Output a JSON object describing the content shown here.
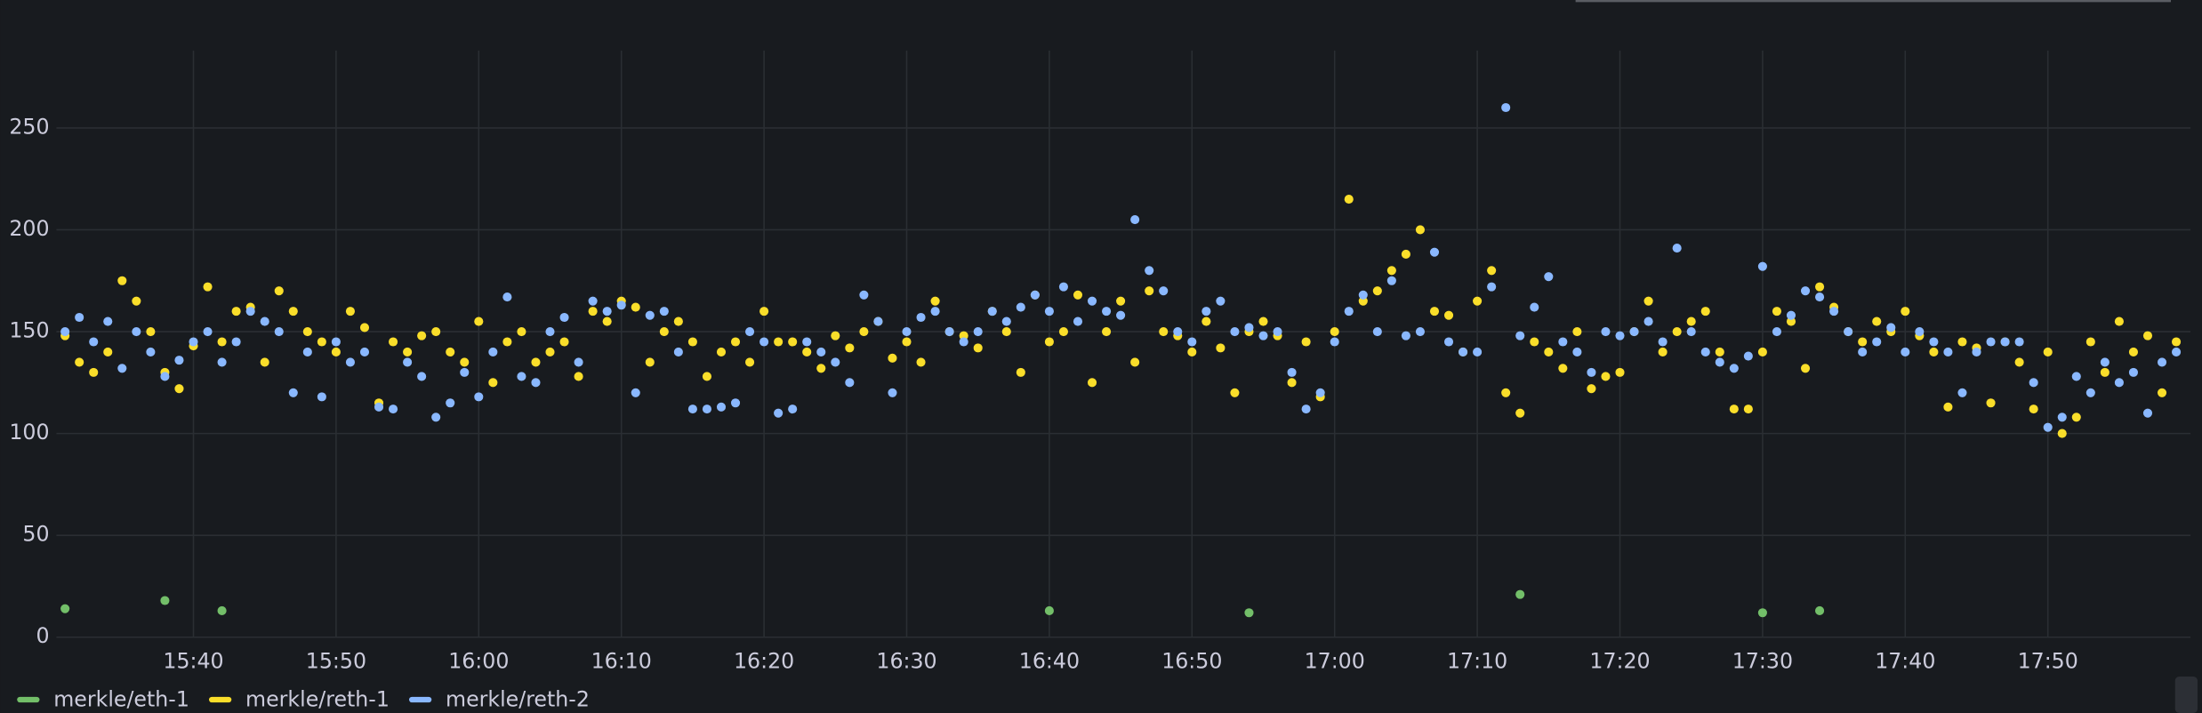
{
  "chart_data": {
    "type": "scatter",
    "x": [
      "15:31",
      "15:32",
      "15:33",
      "15:34",
      "15:35",
      "15:36",
      "15:37",
      "15:38",
      "15:39",
      "15:40",
      "15:41",
      "15:42",
      "15:43",
      "15:44",
      "15:45",
      "15:46",
      "15:47",
      "15:48",
      "15:49",
      "15:50",
      "15:51",
      "15:52",
      "15:53",
      "15:54",
      "15:55",
      "15:56",
      "15:57",
      "15:58",
      "15:59",
      "16:00",
      "16:01",
      "16:02",
      "16:03",
      "16:04",
      "16:05",
      "16:06",
      "16:07",
      "16:08",
      "16:09",
      "16:10",
      "16:11",
      "16:12",
      "16:13",
      "16:14",
      "16:15",
      "16:16",
      "16:17",
      "16:18",
      "16:19",
      "16:20",
      "16:21",
      "16:22",
      "16:23",
      "16:24",
      "16:25",
      "16:26",
      "16:27",
      "16:28",
      "16:29",
      "16:30",
      "16:31",
      "16:32",
      "16:33",
      "16:34",
      "16:35",
      "16:36",
      "16:37",
      "16:38",
      "16:39",
      "16:40",
      "16:41",
      "16:42",
      "16:43",
      "16:44",
      "16:45",
      "16:46",
      "16:47",
      "16:48",
      "16:49",
      "16:50",
      "16:51",
      "16:52",
      "16:53",
      "16:54",
      "16:55",
      "16:56",
      "16:57",
      "16:58",
      "16:59",
      "17:00",
      "17:01",
      "17:02",
      "17:03",
      "17:04",
      "17:05",
      "17:06",
      "17:07",
      "17:08",
      "17:09",
      "17:10",
      "17:11",
      "17:12",
      "17:13",
      "17:14",
      "17:15",
      "17:16",
      "17:17",
      "17:18",
      "17:19",
      "17:20",
      "17:21",
      "17:22",
      "17:23",
      "17:24",
      "17:25",
      "17:26",
      "17:27",
      "17:28",
      "17:29",
      "17:30",
      "17:31",
      "17:32",
      "17:33",
      "17:34",
      "17:35",
      "17:36",
      "17:37",
      "17:38",
      "17:39",
      "17:40",
      "17:41",
      "17:42",
      "17:43",
      "17:44",
      "17:45",
      "17:46",
      "17:47",
      "17:48",
      "17:49",
      "17:50",
      "17:51",
      "17:52",
      "17:53",
      "17:54",
      "17:55",
      "17:56",
      "17:57",
      "17:58",
      "17:59"
    ],
    "series": [
      {
        "name": "merkle/eth-1",
        "color": "#73bf69",
        "x": [
          "15:31",
          "15:38",
          "15:42",
          "16:40",
          "16:54",
          "17:13",
          "17:30",
          "17:34"
        ],
        "values": [
          14,
          18,
          13,
          13,
          12,
          21,
          12,
          13
        ]
      },
      {
        "name": "merkle/reth-1",
        "color": "#fade2a",
        "values": [
          148,
          135,
          130,
          140,
          175,
          165,
          150,
          130,
          122,
          143,
          172,
          145,
          160,
          162,
          135,
          170,
          160,
          150,
          145,
          140,
          160,
          152,
          115,
          145,
          140,
          148,
          150,
          140,
          135,
          155,
          125,
          145,
          150,
          135,
          140,
          145,
          128,
          160,
          155,
          165,
          162,
          135,
          150,
          155,
          145,
          128,
          140,
          145,
          135,
          160,
          145,
          145,
          140,
          132,
          148,
          142,
          150,
          155,
          137,
          145,
          135,
          165,
          150,
          148,
          142,
          160,
          150,
          130,
          168,
          145,
          150,
          168,
          125,
          150,
          165,
          135,
          170,
          150,
          148,
          140,
          155,
          142,
          120,
          150,
          155,
          148,
          125,
          145,
          118,
          150,
          215,
          165,
          170,
          180,
          188,
          200,
          160,
          158,
          140,
          165,
          180,
          120,
          110,
          145,
          140,
          132,
          150,
          122,
          128,
          130,
          150,
          165,
          140,
          150,
          155,
          160,
          140,
          112,
          112,
          140,
          160,
          155,
          132,
          172,
          162,
          150,
          145,
          155,
          150,
          160,
          148,
          140,
          113,
          145,
          142,
          115,
          145,
          135,
          112,
          140,
          100,
          108,
          145,
          130,
          155,
          140,
          148,
          120,
          145
        ]
      },
      {
        "name": "merkle/reth-2",
        "color": "#8ab8ff",
        "values": [
          150,
          157,
          145,
          155,
          132,
          150,
          140,
          128,
          136,
          145,
          150,
          135,
          145,
          160,
          155,
          150,
          120,
          140,
          118,
          145,
          135,
          140,
          113,
          112,
          135,
          128,
          108,
          115,
          130,
          118,
          140,
          167,
          128,
          125,
          150,
          157,
          135,
          165,
          160,
          163,
          120,
          158,
          160,
          140,
          112,
          112,
          113,
          115,
          150,
          145,
          110,
          112,
          145,
          140,
          135,
          125,
          168,
          155,
          120,
          150,
          157,
          160,
          150,
          145,
          150,
          160,
          155,
          162,
          168,
          160,
          172,
          155,
          165,
          160,
          158,
          205,
          180,
          170,
          150,
          145,
          160,
          165,
          150,
          152,
          148,
          150,
          130,
          112,
          120,
          145,
          160,
          168,
          150,
          175,
          148,
          150,
          189,
          145,
          140,
          140,
          172,
          260,
          148,
          162,
          177,
          145,
          140,
          130,
          150,
          148,
          150,
          155,
          145,
          191,
          150,
          140,
          135,
          132,
          138,
          182,
          150,
          158,
          170,
          167,
          160,
          150,
          140,
          145,
          152,
          140,
          150,
          145,
          140,
          120,
          140,
          145,
          145,
          145,
          125,
          103,
          108,
          128,
          120,
          135,
          125,
          130,
          110,
          135,
          140
        ]
      }
    ],
    "xlim": [
      "15:30",
      "18:00"
    ],
    "xticks": [
      "15:40",
      "15:50",
      "16:00",
      "16:10",
      "16:20",
      "16:30",
      "16:40",
      "16:50",
      "17:00",
      "17:10",
      "17:20",
      "17:30",
      "17:40",
      "17:50"
    ],
    "ylim": [
      0,
      288
    ],
    "yticks": [
      0,
      50,
      100,
      150,
      200,
      250
    ],
    "grid": true,
    "legend": "bottom-left"
  }
}
